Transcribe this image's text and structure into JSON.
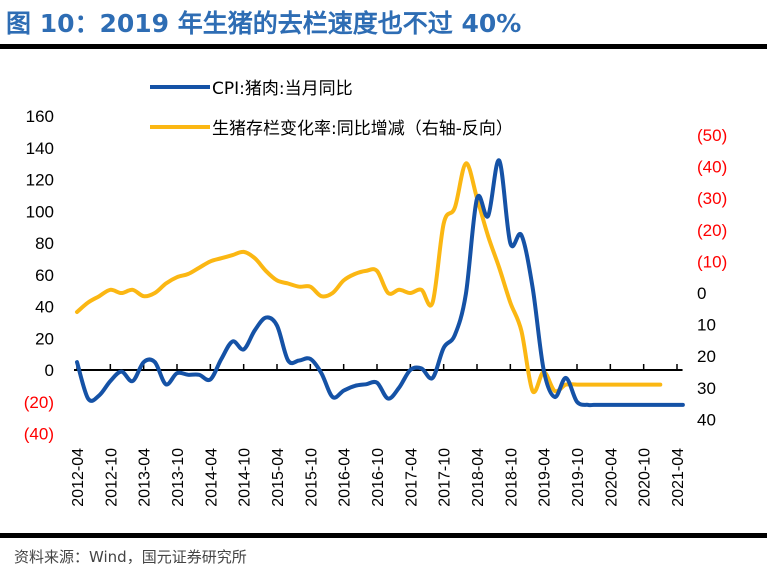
{
  "header": {
    "title": "图 10：2019 年生猪的去栏速度也不过 40%"
  },
  "footer": {
    "source": "资料来源：Wind，国元证券研究所"
  },
  "colors": {
    "cpi": "#1552a6",
    "inventory": "#fbb713",
    "negative_label": "#ff0000",
    "axis": "#000000",
    "title": "#2e6db4"
  },
  "chart_data": {
    "type": "line",
    "title": "2019 年生猪的去栏速度也不过 40%",
    "legend_position": "top-center",
    "legend": [
      {
        "name": "CPI:猪肉:当月同比",
        "color": "#1552a6"
      },
      {
        "name": "生猪存栏变化率:同比增减（右轴-反向）",
        "color": "#fbb713"
      }
    ],
    "x_tick_labels": [
      "2012-04",
      "2012-10",
      "2013-04",
      "2013-10",
      "2014-04",
      "2014-10",
      "2015-04",
      "2015-10",
      "2016-04",
      "2016-10",
      "2017-04",
      "2017-10",
      "2018-04",
      "2018-10",
      "2019-04",
      "2019-10",
      "2020-04",
      "2020-10",
      "2021-04"
    ],
    "left_axis": {
      "ylim": [
        -40,
        160
      ],
      "ticks": [
        160,
        140,
        120,
        100,
        80,
        60,
        40,
        20,
        0,
        -20,
        -40
      ],
      "tick_labels": [
        "160",
        "140",
        "120",
        "100",
        "80",
        "60",
        "40",
        "20",
        "0",
        "(20)",
        "(40)"
      ]
    },
    "right_axis": {
      "reversed": true,
      "ylim": [
        -50,
        40
      ],
      "ticks": [
        -50,
        -40,
        -30,
        -20,
        -10,
        0,
        10,
        20,
        30,
        40
      ],
      "tick_labels": [
        "(50)",
        "(40)",
        "(30)",
        "(20)",
        "(10)",
        "0",
        "10",
        "20",
        "30",
        "40"
      ]
    },
    "grid": false,
    "x_start": "2012-04",
    "x_end": "2021-05",
    "series": [
      {
        "name": "CPI:猪肉:当月同比",
        "axis": "left",
        "months": [
          0,
          2,
          4,
          6,
          8,
          10,
          12,
          14,
          16,
          18,
          20,
          22,
          24,
          26,
          28,
          30,
          32,
          34,
          36,
          38,
          40,
          42,
          44,
          46,
          48,
          50,
          52,
          54,
          56,
          58,
          60,
          62,
          64,
          66,
          68,
          70,
          72,
          74,
          76,
          78,
          80,
          82,
          84,
          86,
          88,
          90,
          92,
          93,
          95,
          97,
          99,
          101,
          103,
          105,
          107,
          109
        ],
        "values": [
          5,
          -18,
          -16,
          -7,
          -1,
          -7,
          5,
          5,
          -9,
          -2,
          -3,
          -3,
          -6,
          7,
          18,
          13,
          25,
          33,
          28,
          6,
          6,
          7,
          -2,
          -17,
          -13,
          -10,
          -9,
          -8,
          -18,
          -11,
          0,
          1,
          -5,
          14,
          22,
          48,
          108,
          97,
          132,
          80,
          85,
          52,
          0,
          -17,
          -5,
          -20,
          -22,
          -22,
          -22,
          -22,
          -22,
          -22,
          -22,
          -22,
          -22,
          -22
        ]
      },
      {
        "name": "生猪存栏变化率:同比增减（右轴-反向）",
        "axis": "right",
        "months": [
          0,
          2,
          4,
          6,
          8,
          10,
          12,
          14,
          16,
          18,
          20,
          22,
          24,
          26,
          28,
          30,
          32,
          34,
          36,
          38,
          40,
          42,
          44,
          46,
          48,
          50,
          52,
          54,
          56,
          58,
          60,
          62,
          64,
          66,
          68,
          70,
          72,
          74,
          76,
          78,
          80,
          82,
          84,
          86,
          88,
          90,
          92,
          93,
          95,
          97,
          99,
          101,
          103,
          105,
          107,
          109
        ],
        "values": [
          6,
          3,
          1,
          -1,
          0,
          -1,
          1,
          0,
          -3,
          -5,
          -6,
          -8,
          -10,
          -11,
          -12,
          -13,
          -11,
          -7,
          -4,
          -3,
          -2,
          -2,
          1,
          0,
          -4,
          -6,
          -7,
          -7,
          0,
          -1,
          0,
          -1,
          3,
          -22,
          -27,
          -41,
          -30,
          -18,
          -8,
          3,
          12,
          31,
          25,
          31,
          29,
          29,
          29,
          29,
          29,
          29,
          29,
          29,
          29,
          29,
          29,
          29
        ]
      }
    ]
  }
}
